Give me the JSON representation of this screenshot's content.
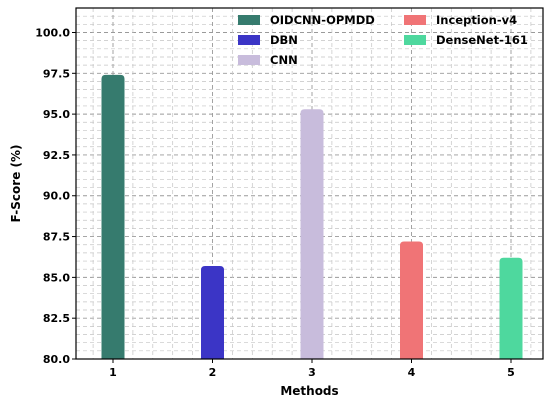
{
  "chart_data": {
    "type": "bar",
    "categories": [
      "1",
      "2",
      "3",
      "4",
      "5"
    ],
    "series": [
      {
        "name": "OIDCNN-OPMDD",
        "color": "#367b6e",
        "values": [
          97.4,
          null,
          null,
          null,
          null
        ]
      },
      {
        "name": "DBN",
        "color": "#3b35c6",
        "values": [
          null,
          85.7,
          null,
          null,
          null
        ]
      },
      {
        "name": "CNN",
        "color": "#c8bcdc",
        "values": [
          null,
          null,
          95.3,
          null,
          null
        ]
      },
      {
        "name": "Inception-v4",
        "color": "#f07476",
        "values": [
          null,
          null,
          null,
          87.2,
          null
        ]
      },
      {
        "name": "DenseNet-161",
        "color": "#4ed89e",
        "values": [
          null,
          null,
          null,
          null,
          86.2
        ]
      }
    ],
    "title": "",
    "xlabel": "Methods",
    "ylabel": "F-Score (%)",
    "ylim": [
      80.0,
      101.5
    ],
    "yticks": [
      "80.0",
      "82.5",
      "85.0",
      "87.5",
      "90.0",
      "92.5",
      "95.0",
      "97.5",
      "100.0"
    ],
    "grid": true,
    "grid_style": "dashed",
    "legend": {
      "placement": "top-right",
      "columns": 2
    }
  }
}
